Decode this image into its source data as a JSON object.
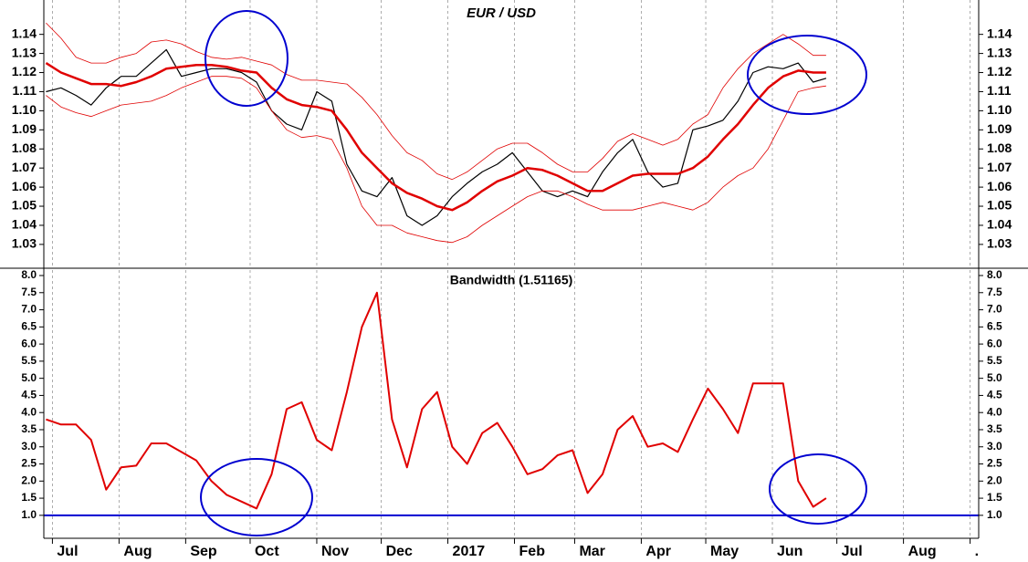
{
  "chart_data": [
    {
      "type": "line",
      "title": "EUR / USD",
      "x": [
        -3,
        4,
        11,
        18,
        25,
        32,
        39,
        46,
        53,
        60,
        67,
        74,
        81,
        88,
        95,
        102,
        109,
        116,
        123,
        130,
        137,
        144,
        151,
        158,
        165,
        172,
        179,
        186,
        193,
        200,
        207,
        214,
        221,
        228,
        235,
        242,
        249,
        256,
        263,
        270,
        277,
        284,
        291,
        298,
        305,
        312,
        319,
        326,
        333,
        340,
        347,
        354,
        360
      ],
      "series": [
        {
          "color": "#000000",
          "line_width": 1.2,
          "values": [
            1.11,
            1.112,
            1.108,
            1.103,
            1.112,
            1.118,
            1.118,
            1.125,
            1.132,
            1.118,
            1.12,
            1.122,
            1.122,
            1.12,
            1.115,
            1.1,
            1.093,
            1.09,
            1.11,
            1.105,
            1.072,
            1.058,
            1.055,
            1.065,
            1.045,
            1.04,
            1.045,
            1.055,
            1.062,
            1.068,
            1.072,
            1.078,
            1.068,
            1.058,
            1.055,
            1.058,
            1.055,
            1.068,
            1.078,
            1.085,
            1.068,
            1.06,
            1.062,
            1.09,
            1.092,
            1.095,
            1.105,
            1.12,
            1.123,
            1.122,
            1.125,
            1.115,
            1.117
          ]
        },
        {
          "color": "#e00000",
          "line_width": 0.8,
          "values": [
            1.146,
            1.138,
            1.128,
            1.125,
            1.125,
            1.128,
            1.13,
            1.136,
            1.137,
            1.135,
            1.131,
            1.128,
            1.127,
            1.128,
            1.126,
            1.124,
            1.119,
            1.116,
            1.116,
            1.115,
            1.114,
            1.107,
            1.098,
            1.087,
            1.078,
            1.074,
            1.067,
            1.064,
            1.068,
            1.074,
            1.08,
            1.083,
            1.083,
            1.078,
            1.072,
            1.068,
            1.068,
            1.075,
            1.084,
            1.088,
            1.085,
            1.082,
            1.085,
            1.093,
            1.098,
            1.112,
            1.122,
            1.13,
            1.135,
            1.14,
            1.135,
            1.129,
            1.129
          ]
        },
        {
          "color": "#e00000",
          "line_width": 2.5,
          "values": [
            1.125,
            1.12,
            1.117,
            1.114,
            1.114,
            1.113,
            1.115,
            1.118,
            1.122,
            1.123,
            1.124,
            1.124,
            1.123,
            1.121,
            1.12,
            1.112,
            1.106,
            1.103,
            1.102,
            1.1,
            1.09,
            1.078,
            1.07,
            1.062,
            1.057,
            1.054,
            1.05,
            1.048,
            1.052,
            1.058,
            1.063,
            1.066,
            1.07,
            1.069,
            1.066,
            1.062,
            1.058,
            1.058,
            1.062,
            1.066,
            1.067,
            1.067,
            1.067,
            1.07,
            1.076,
            1.085,
            1.093,
            1.103,
            1.112,
            1.118,
            1.121,
            1.12,
            1.12
          ]
        },
        {
          "color": "#e00000",
          "line_width": 0.8,
          "values": [
            1.108,
            1.102,
            1.099,
            1.097,
            1.1,
            1.103,
            1.104,
            1.105,
            1.108,
            1.112,
            1.115,
            1.118,
            1.118,
            1.117,
            1.112,
            1.1,
            1.09,
            1.086,
            1.087,
            1.085,
            1.07,
            1.05,
            1.04,
            1.04,
            1.036,
            1.034,
            1.032,
            1.031,
            1.034,
            1.04,
            1.045,
            1.05,
            1.055,
            1.058,
            1.058,
            1.055,
            1.051,
            1.048,
            1.048,
            1.048,
            1.05,
            1.052,
            1.05,
            1.048,
            1.052,
            1.06,
            1.066,
            1.07,
            1.08,
            1.095,
            1.11,
            1.112,
            1.113
          ]
        }
      ],
      "xlim": [
        -4,
        431
      ],
      "ylim": [
        1.018,
        1.158
      ],
      "yticks": [
        1.03,
        1.04,
        1.05,
        1.06,
        1.07,
        1.08,
        1.09,
        {
          "value": 1.1,
          "label": "1.10"
        },
        1.11,
        1.12,
        1.13,
        1.14
      ]
    },
    {
      "type": "line",
      "title": "Bandwidth (1.51165)",
      "x": [
        -3,
        4,
        11,
        18,
        25,
        32,
        39,
        46,
        53,
        60,
        67,
        74,
        81,
        88,
        95,
        102,
        109,
        116,
        123,
        130,
        137,
        144,
        151,
        158,
        165,
        172,
        179,
        186,
        193,
        200,
        207,
        214,
        221,
        228,
        235,
        242,
        249,
        256,
        263,
        270,
        277,
        284,
        291,
        298,
        305,
        312,
        319,
        326,
        333,
        340,
        347,
        354,
        360
      ],
      "series": [
        {
          "color": "#e00000",
          "line_width": 2,
          "values": [
            3.8,
            3.65,
            3.65,
            3.2,
            1.75,
            2.4,
            2.45,
            3.1,
            3.1,
            2.85,
            2.6,
            2.0,
            1.6,
            1.4,
            1.2,
            2.2,
            4.1,
            4.3,
            3.2,
            2.9,
            4.6,
            6.5,
            7.5,
            3.8,
            2.4,
            4.1,
            4.6,
            3.0,
            2.5,
            3.4,
            3.7,
            3.0,
            2.2,
            2.35,
            2.75,
            2.9,
            1.65,
            2.2,
            3.5,
            3.9,
            3.0,
            3.1,
            2.85,
            3.8,
            4.7,
            4.1,
            3.4,
            4.85,
            4.85,
            4.85,
            2.0,
            1.25,
            1.5
          ]
        }
      ],
      "hline": {
        "value": 1.0,
        "color": "#0000d0"
      },
      "xlim": [
        -4,
        431
      ],
      "ylim": [
        0.33,
        8.16
      ],
      "yticks": [
        {
          "value": 1,
          "label": "1.0"
        },
        1.5,
        {
          "value": 2,
          "label": "2.0"
        },
        2.5,
        {
          "value": 3,
          "label": "3.0"
        },
        3.5,
        {
          "value": 4,
          "label": "4.0"
        },
        4.5,
        {
          "value": 5,
          "label": "5.0"
        },
        5.5,
        {
          "value": 6,
          "label": "6.0"
        },
        6.5,
        {
          "value": 7,
          "label": "7.0"
        },
        7.5,
        {
          "value": 8,
          "label": "8.0"
        }
      ],
      "xticks": [
        {
          "value": 0,
          "label": "Jul"
        },
        {
          "value": 31,
          "label": "Aug"
        },
        {
          "value": 62,
          "label": "Sep"
        },
        {
          "value": 92,
          "label": "Oct"
        },
        {
          "value": 123,
          "label": "Nov"
        },
        {
          "value": 153,
          "label": "Dec"
        },
        {
          "value": 184,
          "label": "2017"
        },
        {
          "value": 215,
          "label": "Feb"
        },
        {
          "value": 243,
          "label": "Mar"
        },
        {
          "value": 274,
          "label": "Apr"
        },
        {
          "value": 304,
          "label": "May"
        },
        {
          "value": 335,
          "label": "Jun"
        },
        {
          "value": 365,
          "label": "Jul"
        },
        {
          "value": 396,
          "label": "Aug"
        },
        {
          "value": 427,
          "label": "."
        }
      ],
      "grid": true
    }
  ]
}
